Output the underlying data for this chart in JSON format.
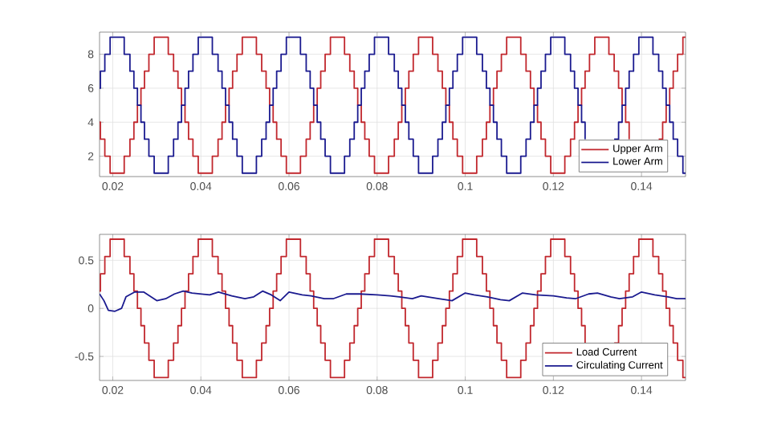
{
  "chart_data": [
    {
      "type": "step",
      "xlim": [
        0.017,
        0.15
      ],
      "ylim": [
        0.8,
        9.3
      ],
      "xticks": [
        0.02,
        0.04,
        0.06,
        0.08,
        0.1,
        0.12,
        0.14
      ],
      "yticks": [
        2,
        4,
        6,
        8
      ],
      "grid": true,
      "legend": "bottom right",
      "x": [
        0.017,
        0.0172,
        0.0182,
        0.0194,
        0.0226,
        0.0239,
        0.0248,
        0.0256,
        0.0264,
        0.0272,
        0.0282,
        0.0294,
        0.0326,
        0.0338,
        0.0348,
        0.0356,
        0.0364,
        0.0372,
        0.0382,
        0.0394,
        0.0426,
        0.0439,
        0.0448,
        0.0456,
        0.0464,
        0.0472,
        0.0482,
        0.0494,
        0.0526,
        0.0538,
        0.0548,
        0.0556,
        0.0564,
        0.0572,
        0.0582,
        0.0594,
        0.0626,
        0.0639,
        0.0648,
        0.0656,
        0.0664,
        0.0672,
        0.0682,
        0.0694,
        0.0726,
        0.0738,
        0.0748,
        0.0756,
        0.0764,
        0.0772,
        0.0782,
        0.0794,
        0.0826,
        0.0839,
        0.0848,
        0.0856,
        0.0864,
        0.0872,
        0.0882,
        0.0894,
        0.0926,
        0.0938,
        0.0948,
        0.0956,
        0.0964,
        0.0972,
        0.0982,
        0.0994,
        0.1026,
        0.1039,
        0.1048,
        0.1056,
        0.1064,
        0.1072,
        0.1082,
        0.1094,
        0.1126,
        0.1138,
        0.1148,
        0.1156,
        0.1164,
        0.1172,
        0.1182,
        0.1194,
        0.1226,
        0.1239,
        0.1248,
        0.1256,
        0.1264,
        0.1272,
        0.1282,
        0.1294,
        0.1326,
        0.1338,
        0.1348,
        0.1356,
        0.1364,
        0.1372,
        0.1382,
        0.1394,
        0.1426,
        0.1439,
        0.1448,
        0.1456,
        0.1464,
        0.1472,
        0.1482,
        0.1494,
        0.15
      ],
      "series": [
        {
          "name": "Upper Arm",
          "color": "#c1272d",
          "values": [
            4,
            3,
            2,
            1,
            2,
            3,
            4,
            5,
            6,
            7,
            8,
            9,
            8,
            7,
            6,
            5,
            4,
            3,
            2,
            1,
            2,
            3,
            4,
            5,
            6,
            7,
            8,
            9,
            8,
            7,
            6,
            5,
            4,
            3,
            2,
            1,
            2,
            3,
            4,
            5,
            6,
            7,
            8,
            9,
            8,
            7,
            6,
            5,
            4,
            3,
            2,
            1,
            2,
            3,
            4,
            5,
            6,
            7,
            8,
            9,
            8,
            7,
            6,
            5,
            4,
            3,
            2,
            1,
            2,
            3,
            4,
            5,
            6,
            7,
            8,
            9,
            8,
            7,
            6,
            5,
            4,
            3,
            2,
            1,
            2,
            3,
            4,
            5,
            6,
            7,
            8,
            9,
            8,
            7,
            6,
            5,
            4,
            3,
            null,
            null,
            null,
            3,
            4,
            5,
            6,
            7,
            8,
            9,
            9
          ]
        },
        {
          "name": "Lower Arm",
          "color": "#1a1a8f",
          "values": [
            6,
            7,
            8,
            9,
            8,
            7,
            6,
            5,
            4,
            3,
            2,
            1,
            2,
            3,
            4,
            5,
            6,
            7,
            8,
            9,
            8,
            7,
            6,
            5,
            4,
            3,
            2,
            1,
            2,
            3,
            4,
            5,
            6,
            7,
            8,
            9,
            8,
            7,
            6,
            5,
            4,
            3,
            2,
            1,
            2,
            3,
            4,
            5,
            6,
            7,
            8,
            9,
            8,
            7,
            6,
            5,
            4,
            3,
            2,
            1,
            2,
            3,
            4,
            5,
            6,
            7,
            8,
            9,
            8,
            7,
            6,
            5,
            4,
            3,
            2,
            1,
            2,
            3,
            4,
            5,
            6,
            7,
            8,
            9,
            8,
            7,
            6,
            5,
            4,
            3,
            null,
            null,
            null,
            3,
            4,
            5,
            6,
            7,
            8,
            9,
            8,
            7,
            6,
            5,
            4,
            3,
            2,
            1,
            1
          ]
        }
      ]
    },
    {
      "type": "step",
      "xlim": [
        0.017,
        0.15
      ],
      "ylim": [
        -0.75,
        0.77
      ],
      "xticks": [
        0.02,
        0.04,
        0.06,
        0.08,
        0.1,
        0.12,
        0.14
      ],
      "yticks": [
        -0.5,
        0,
        0.5
      ],
      "grid": true,
      "legend": "bottom right",
      "x": [
        0.017,
        0.0172,
        0.0182,
        0.0194,
        0.0226,
        0.0239,
        0.0248,
        0.0256,
        0.0264,
        0.0272,
        0.0282,
        0.0294,
        0.0326,
        0.0338,
        0.0348,
        0.0356,
        0.0364,
        0.0372,
        0.0382,
        0.0394,
        0.0426,
        0.0439,
        0.0448,
        0.0456,
        0.0464,
        0.0472,
        0.0482,
        0.0494,
        0.0526,
        0.0538,
        0.0548,
        0.0556,
        0.0564,
        0.0572,
        0.0582,
        0.0594,
        0.0626,
        0.0639,
        0.0648,
        0.0656,
        0.0664,
        0.0672,
        0.0682,
        0.0694,
        0.0726,
        0.0738,
        0.0748,
        0.0756,
        0.0764,
        0.0772,
        0.0782,
        0.0794,
        0.0826,
        0.0839,
        0.0848,
        0.0856,
        0.0864,
        0.0872,
        0.0882,
        0.0894,
        0.0926,
        0.0938,
        0.0948,
        0.0956,
        0.0964,
        0.0972,
        0.0982,
        0.0994,
        0.1026,
        0.1039,
        0.1048,
        0.1056,
        0.1064,
        0.1072,
        0.1082,
        0.1094,
        0.1126,
        0.1138,
        0.1148,
        0.1156,
        0.1164,
        0.1172,
        0.1182,
        0.1194,
        0.1226,
        0.1239,
        0.1248,
        0.1256,
        0.1264,
        0.1272,
        0.1282,
        0.1294,
        0.1326,
        0.1338,
        0.1348,
        0.1356,
        0.1364,
        0.1372,
        0.1382,
        0.1394,
        0.1426,
        0.1439,
        0.1448,
        0.1456,
        0.1464,
        0.1472,
        0.1482,
        0.1494,
        0.15
      ],
      "series": [
        {
          "name": "Load Current",
          "color": "#c1272d",
          "values": [
            0.18,
            0.36,
            0.54,
            0.72,
            0.54,
            0.36,
            0.18,
            0,
            -0.18,
            -0.36,
            -0.54,
            -0.72,
            -0.54,
            -0.36,
            -0.18,
            0,
            0.18,
            0.36,
            0.54,
            0.72,
            0.54,
            0.36,
            0.18,
            0,
            -0.18,
            -0.36,
            -0.54,
            -0.72,
            -0.54,
            -0.36,
            -0.18,
            0,
            0.18,
            0.36,
            0.54,
            0.72,
            0.54,
            0.36,
            0.18,
            0,
            -0.18,
            -0.36,
            -0.54,
            -0.72,
            -0.54,
            -0.36,
            -0.18,
            0,
            0.18,
            0.36,
            0.54,
            0.72,
            0.54,
            0.36,
            0.18,
            0,
            -0.18,
            -0.36,
            -0.54,
            -0.72,
            -0.54,
            -0.36,
            -0.18,
            0,
            0.18,
            0.36,
            0.54,
            0.72,
            0.54,
            0.36,
            0.18,
            0,
            -0.18,
            -0.36,
            -0.54,
            -0.72,
            -0.54,
            -0.36,
            -0.18,
            0,
            0.18,
            0.36,
            0.54,
            0.72,
            0.54,
            0.36,
            0.18,
            0,
            -0.18,
            -0.36,
            null,
            null,
            null,
            -0.36,
            -0.18,
            0,
            0.18,
            0.36,
            0.54,
            0.72,
            0.54,
            0.36,
            0.18,
            0,
            -0.18,
            -0.36,
            -0.54,
            -0.72,
            -0.72
          ]
        },
        {
          "name": "Circulating Current",
          "color": "#1a1a8f",
          "type": "line",
          "x": [
            0.017,
            0.018,
            0.019,
            0.0205,
            0.022,
            0.023,
            0.025,
            0.027,
            0.03,
            0.032,
            0.034,
            0.036,
            0.038,
            0.04,
            0.042,
            0.044,
            0.047,
            0.05,
            0.052,
            0.054,
            0.056,
            0.058,
            0.06,
            0.063,
            0.065,
            0.068,
            0.07,
            0.073,
            0.076,
            0.08,
            0.083,
            0.085,
            0.088,
            0.09,
            0.094,
            0.097,
            0.1,
            0.102,
            0.105,
            0.108,
            0.11,
            0.113,
            0.116,
            0.12,
            0.123,
            0.125,
            0.128,
            0.13,
            0.133,
            0.135,
            0.138,
            0.14,
            0.143,
            0.146,
            0.148,
            0.15
          ],
          "values": [
            0.15,
            0.08,
            -0.02,
            -0.03,
            0.0,
            0.12,
            0.17,
            0.17,
            0.08,
            0.1,
            0.15,
            0.18,
            0.16,
            0.15,
            0.14,
            0.17,
            0.13,
            0.1,
            0.12,
            0.18,
            0.14,
            0.08,
            0.17,
            0.14,
            0.13,
            0.1,
            0.1,
            0.15,
            0.15,
            0.14,
            0.13,
            0.12,
            0.1,
            0.13,
            0.1,
            0.08,
            0.16,
            0.14,
            0.12,
            0.09,
            0.08,
            0.16,
            0.14,
            0.13,
            0.11,
            0.1,
            0.15,
            0.16,
            0.12,
            0.1,
            0.12,
            0.17,
            0.14,
            0.12,
            0.1,
            0.1
          ]
        }
      ]
    }
  ]
}
